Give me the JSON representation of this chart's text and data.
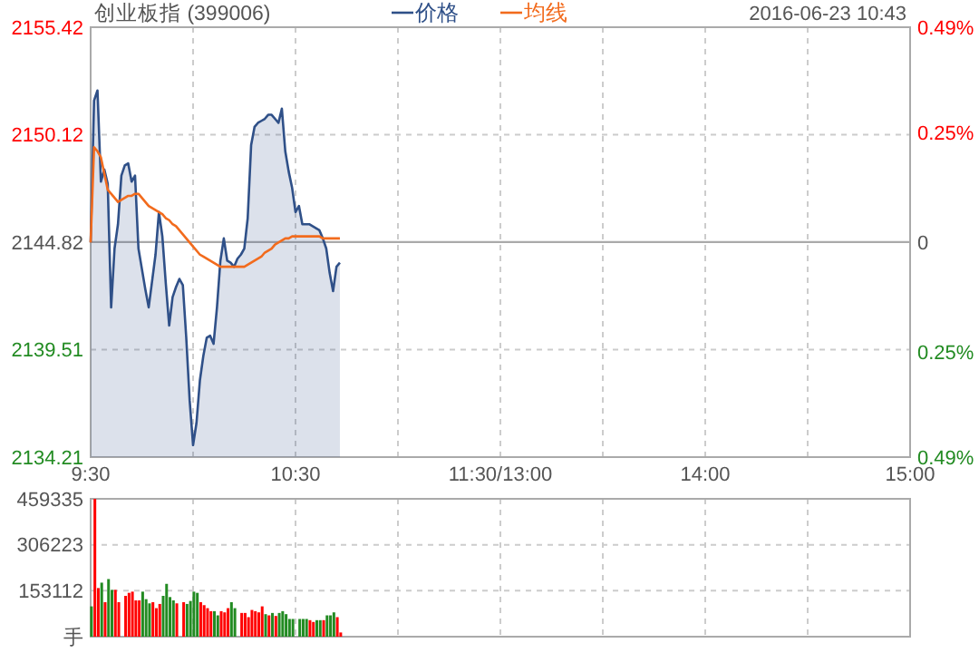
{
  "chart_data": [
    {
      "type": "area",
      "title": "创业板指 (399006)",
      "subtitle": "2016-06-23 10:43",
      "legend": "top",
      "grid": true,
      "categories": [
        "9:30",
        null,
        null,
        null,
        null,
        null,
        null,
        null,
        null,
        null,
        null,
        null,
        null,
        null,
        null,
        null,
        null,
        null,
        null,
        null,
        null,
        null,
        null,
        null,
        null,
        null,
        null,
        null,
        null,
        null,
        null,
        null,
        null,
        null,
        null,
        null,
        null,
        null,
        null,
        null,
        null,
        null,
        null,
        null,
        null,
        null,
        null,
        null,
        null,
        null,
        null,
        null,
        null,
        null,
        null,
        null,
        null,
        null,
        null,
        null,
        "10:30",
        null,
        null,
        null,
        null,
        null,
        null,
        null,
        null,
        null,
        null,
        null,
        null,
        null,
        null,
        null,
        null,
        null,
        null,
        null,
        null,
        null,
        null,
        null,
        null,
        null,
        null,
        null,
        null,
        null,
        null,
        null,
        null,
        null,
        null,
        null,
        null,
        null,
        null,
        null,
        null,
        null,
        null,
        null,
        null,
        null,
        null,
        null,
        null,
        null,
        null,
        null,
        null,
        null,
        null,
        null,
        null,
        null,
        null,
        null,
        "11:30/13:00",
        null,
        null,
        null,
        null,
        null,
        null,
        null,
        null,
        null,
        null,
        null,
        null,
        null,
        null,
        null,
        null,
        null,
        null,
        null,
        null,
        null,
        null,
        null,
        null,
        null,
        null,
        null,
        null,
        null,
        null,
        null,
        null,
        null,
        null,
        null,
        null,
        null,
        null,
        null,
        null,
        null,
        null,
        null,
        null,
        null,
        null,
        null,
        null,
        null,
        null,
        null,
        null,
        null,
        null,
        null,
        null,
        null,
        null,
        null,
        "14:00",
        null,
        null,
        null,
        null,
        null,
        null,
        null,
        null,
        null,
        null,
        null,
        null,
        null,
        null,
        null,
        null,
        null,
        null,
        null,
        null,
        null,
        null,
        null,
        null,
        null,
        null,
        null,
        null,
        null,
        null,
        null,
        null,
        null,
        null,
        null,
        null,
        null,
        null,
        null,
        null,
        null,
        null,
        null,
        null,
        null,
        null,
        null,
        null,
        null,
        null,
        null,
        null,
        null,
        null,
        null,
        null,
        null,
        null,
        null,
        "15:00"
      ],
      "ylim": [
        2134.21,
        2155.42
      ],
      "yticks": [
        2134.21,
        2139.51,
        2144.82,
        2150.12,
        2155.42
      ],
      "y2lim": [
        -0.49,
        0.49
      ],
      "y2ticks": [
        {
          "value": -0.49,
          "label": "0.49%"
        },
        {
          "value": -0.25,
          "label": "0.25%"
        },
        0,
        {
          "value": 0.25,
          "label": "0.25%"
        },
        {
          "value": 0.49,
          "label": "0.49%"
        }
      ],
      "ref_lines": [
        {
          "axis": "y",
          "value": 2144.82,
          "color": "#aaaaaa"
        }
      ],
      "series": [
        {
          "name": "价格",
          "type": "area",
          "color": "#2f5088",
          "values": [
            2144.8,
            2151.8,
            2152.3,
            2147.8,
            2148.4,
            2147.7,
            2141.6,
            2144.5,
            2145.7,
            2148.1,
            2148.6,
            2148.7,
            2147.8,
            2148.1,
            2144.5,
            2143.5,
            2142.5,
            2141.6,
            2142.9,
            2144.2,
            2146.3,
            2145.1,
            2142.8,
            2140.7,
            2142.1,
            2142.6,
            2143.0,
            2142.7,
            2140.1,
            2137.0,
            2134.8,
            2135.9,
            2138.0,
            2139.2,
            2140.1,
            2140.2,
            2139.8,
            2141.6,
            2143.9,
            2145.0,
            2143.9,
            2143.8,
            2143.6,
            2144.0,
            2144.2,
            2144.5,
            2146.0,
            2149.6,
            2150.5,
            2150.7,
            2150.8,
            2150.9,
            2151.1,
            2151.1,
            2150.9,
            2150.7,
            2151.4,
            2149.3,
            2148.3,
            2147.5,
            2146.3,
            2146.6,
            2145.7,
            2145.7,
            2145.7,
            2145.6,
            2145.5,
            2145.4,
            2145.0,
            2144.5,
            2143.3,
            2142.4,
            2143.6,
            2143.8,
            null,
            null,
            null,
            null,
            null,
            null,
            null,
            null,
            null,
            null,
            null,
            null,
            null,
            null,
            null,
            null,
            null,
            null,
            null,
            null,
            null,
            null,
            null,
            null,
            null,
            null,
            null,
            null,
            null,
            null,
            null,
            null,
            null,
            null,
            null,
            null,
            null,
            null,
            null,
            null,
            null,
            null,
            null,
            null,
            null,
            null,
            null,
            null,
            null,
            null,
            null,
            null,
            null,
            null,
            null,
            null,
            null,
            null,
            null,
            null,
            null,
            null,
            null,
            null,
            null,
            null,
            null,
            null,
            null,
            null,
            null,
            null,
            null,
            null,
            null,
            null,
            null,
            null,
            null,
            null,
            null,
            null,
            null,
            null,
            null,
            null,
            null,
            null,
            null,
            null,
            null,
            null,
            null,
            null,
            null,
            null,
            null,
            null,
            null,
            null,
            null,
            null,
            null,
            null,
            null,
            null,
            null,
            null,
            null,
            null,
            null,
            null,
            null,
            null,
            null,
            null,
            null,
            null,
            null,
            null,
            null,
            null,
            null,
            null,
            null,
            null,
            null,
            null,
            null,
            null,
            null,
            null,
            null,
            null,
            null,
            null,
            null,
            null,
            null,
            null,
            null,
            null,
            null,
            null,
            null,
            null,
            null,
            null,
            null,
            null,
            null,
            null,
            null,
            null,
            null,
            null,
            null,
            null,
            null,
            null,
            null,
            null,
            null,
            null,
            null,
            null,
            null
          ]
        },
        {
          "name": "均线",
          "type": "line",
          "color": "#f26b1d",
          "values": [
            2144.8,
            2149.5,
            2149.3,
            2149.0,
            2148.2,
            2147.4,
            2147.2,
            2147.0,
            2146.8,
            2146.9,
            2147.0,
            2147.1,
            2147.1,
            2147.2,
            2147.2,
            2147.0,
            2146.8,
            2146.6,
            2146.5,
            2146.4,
            2146.3,
            2146.2,
            2146.0,
            2145.9,
            2145.7,
            2145.6,
            2145.4,
            2145.2,
            2145.0,
            2144.8,
            2144.6,
            2144.4,
            2144.2,
            2144.1,
            2144.0,
            2143.9,
            2143.8,
            2143.7,
            2143.6,
            2143.6,
            2143.6,
            2143.6,
            2143.6,
            2143.6,
            2143.6,
            2143.6,
            2143.7,
            2143.8,
            2143.9,
            2144.0,
            2144.1,
            2144.3,
            2144.4,
            2144.5,
            2144.7,
            2144.8,
            2144.9,
            2145.0,
            2145.0,
            2145.1,
            2145.1,
            2145.1,
            2145.1,
            2145.1,
            2145.1,
            2145.1,
            2145.1,
            2145.1,
            2145.0,
            2145.0,
            2145.0,
            2145.0,
            2145.0,
            2145.0,
            null,
            null,
            null,
            null,
            null,
            null,
            null,
            null,
            null,
            null,
            null,
            null,
            null,
            null,
            null,
            null,
            null,
            null,
            null,
            null,
            null,
            null,
            null,
            null,
            null,
            null,
            null,
            null,
            null,
            null,
            null,
            null,
            null,
            null,
            null,
            null,
            null,
            null,
            null,
            null,
            null,
            null,
            null,
            null,
            null,
            null,
            null,
            null,
            null,
            null,
            null,
            null,
            null,
            null,
            null,
            null,
            null,
            null,
            null,
            null,
            null,
            null,
            null,
            null,
            null,
            null,
            null,
            null,
            null,
            null,
            null,
            null,
            null,
            null,
            null,
            null,
            null,
            null,
            null,
            null,
            null,
            null,
            null,
            null,
            null,
            null,
            null,
            null,
            null,
            null,
            null,
            null,
            null,
            null,
            null,
            null,
            null,
            null,
            null,
            null,
            null,
            null,
            null,
            null,
            null,
            null,
            null,
            null,
            null,
            null,
            null,
            null,
            null,
            null,
            null,
            null,
            null,
            null,
            null,
            null,
            null,
            null,
            null,
            null,
            null,
            null,
            null,
            null,
            null,
            null,
            null,
            null,
            null,
            null,
            null,
            null,
            null,
            null,
            null,
            null,
            null,
            null,
            null,
            null,
            null,
            null,
            null,
            null,
            null,
            null,
            null,
            null,
            null,
            null,
            null,
            null,
            null,
            null,
            null,
            null,
            null,
            null,
            null,
            null,
            null,
            null,
            null
          ]
        }
      ]
    },
    {
      "type": "bar",
      "grid": true,
      "tick_labels": "y",
      "categories": [
        null,
        null,
        null,
        null,
        null,
        null,
        null,
        null,
        null,
        null,
        null,
        null,
        null,
        null,
        null,
        null,
        null,
        null,
        null,
        null,
        null,
        null,
        null,
        null,
        null,
        null,
        null,
        null,
        null,
        null,
        null,
        null,
        null,
        null,
        null,
        null,
        null,
        null,
        null,
        null,
        null,
        null,
        null,
        null,
        null,
        null,
        null,
        null,
        null,
        null,
        null,
        null,
        null,
        null,
        null,
        null,
        null,
        null,
        null,
        null,
        null,
        null,
        null,
        null,
        null,
        null,
        null,
        null,
        null,
        null,
        null,
        null,
        null,
        null,
        null,
        null,
        null,
        null,
        null,
        null,
        null,
        null,
        null,
        null,
        null,
        null,
        null,
        null,
        null,
        null,
        null,
        null,
        null,
        null,
        null,
        null,
        null,
        null,
        null,
        null,
        null,
        null,
        null,
        null,
        null,
        null,
        null,
        null,
        null,
        null,
        null,
        null,
        null,
        null,
        null,
        null,
        null,
        null,
        null,
        null,
        null,
        null,
        null,
        null,
        null,
        null,
        null,
        null,
        null,
        null,
        null,
        null,
        null,
        null,
        null,
        null,
        null,
        null,
        null,
        null,
        null,
        null,
        null,
        null,
        null,
        null,
        null,
        null,
        null,
        null,
        null,
        null,
        null,
        null,
        null,
        null,
        null,
        null,
        null,
        null,
        null,
        null,
        null,
        null,
        null,
        null,
        null,
        null,
        null,
        null,
        null,
        null,
        null,
        null,
        null,
        null,
        null,
        null,
        null,
        null,
        null,
        null,
        null,
        null,
        null,
        null,
        null,
        null,
        null,
        null,
        null,
        null,
        null,
        null,
        null,
        null,
        null,
        null,
        null,
        null,
        null,
        null,
        null,
        null,
        null,
        null,
        null,
        null,
        null,
        null,
        null,
        null,
        null,
        null,
        null,
        null,
        null,
        null,
        null,
        null,
        null,
        null,
        null,
        null,
        null,
        null,
        null,
        null,
        null,
        null,
        null,
        null,
        null,
        null,
        null,
        null,
        null,
        null,
        null,
        null,
        null
      ],
      "ylim": [
        0,
        459335
      ],
      "yticks": [
        {
          "value": 0,
          "label": "手"
        },
        153112,
        306223,
        459335
      ],
      "values": [
        101000,
        459000,
        162000,
        180000,
        115000,
        192000,
        156000,
        156000,
        115000,
        null,
        136000,
        146000,
        150000,
        121000,
        121000,
        150000,
        125000,
        111000,
        115000,
        95000,
        109000,
        136000,
        176000,
        132000,
        121000,
        111000,
        null,
        115000,
        109000,
        119000,
        150000,
        146000,
        115000,
        105000,
        95000,
        85000,
        85000,
        71000,
        85000,
        81000,
        95000,
        115000,
        95000,
        null,
        79000,
        79000,
        65000,
        89000,
        85000,
        81000,
        101000,
        75000,
        71000,
        79000,
        69000,
        79000,
        85000,
        75000,
        59000,
        59000,
        null,
        59000,
        59000,
        59000,
        55000,
        49000,
        55000,
        55000,
        55000,
        71000,
        71000,
        81000,
        65000,
        14000,
        null,
        null,
        null,
        null,
        null,
        null,
        null,
        null,
        null,
        null,
        null,
        null,
        null,
        null,
        null,
        null,
        null,
        null,
        null,
        null,
        null,
        null,
        null,
        null,
        null,
        null,
        null,
        null,
        null,
        null,
        null,
        null,
        null,
        null,
        null,
        null,
        null,
        null,
        null,
        null,
        null,
        null,
        null,
        null,
        null,
        null,
        null,
        null,
        null,
        null,
        null,
        null,
        null,
        null,
        null,
        null,
        null,
        null,
        null,
        null,
        null,
        null,
        null,
        null,
        null,
        null,
        null,
        null,
        null,
        null,
        null,
        null,
        null,
        null,
        null,
        null,
        null,
        null,
        null,
        null,
        null,
        null,
        null,
        null,
        null,
        null,
        null,
        null,
        null,
        null,
        null,
        null,
        null,
        null,
        null,
        null,
        null,
        null,
        null,
        null,
        null,
        null,
        null,
        null,
        null,
        null,
        null,
        null,
        null,
        null,
        null,
        null,
        null,
        null,
        null,
        null,
        null,
        null,
        null,
        null,
        null,
        null,
        null,
        null,
        null,
        null,
        null,
        null,
        null,
        null,
        null,
        null,
        null,
        null,
        null,
        null,
        null,
        null,
        null,
        null,
        null,
        null,
        null,
        null,
        null,
        null,
        null,
        null,
        null,
        null,
        null,
        null,
        null,
        null,
        null,
        null,
        null,
        null,
        null,
        null,
        null,
        null,
        null,
        null,
        null,
        null,
        null
      ],
      "colors": [
        "#228b22",
        "#ff0000",
        "#ff0000",
        "#228b22",
        "#ff0000",
        "#228b22",
        "#228b22",
        "#ff0000",
        "#ff0000",
        null,
        "#ff0000",
        "#ff0000",
        "#ff0000",
        "#ff0000",
        "#ff0000",
        "#228b22",
        "#228b22",
        "#228b22",
        "#ff0000",
        "#ff0000",
        "#ff0000",
        "#228b22",
        "#228b22",
        "#228b22",
        "#228b22",
        "#ff0000",
        null,
        "#ff0000",
        "#228b22",
        "#228b22",
        "#228b22",
        "#228b22",
        "#ff0000",
        "#ff0000",
        "#ff0000",
        "#ff0000",
        "#228b22",
        "#228b22",
        "#ff0000",
        "#ff0000",
        "#ff0000",
        "#228b22",
        "#228b22",
        null,
        "#ff0000",
        "#ff0000",
        "#ff0000",
        "#ff0000",
        "#ff0000",
        "#ff0000",
        "#ff0000",
        "#228b22",
        "#ff0000",
        "#228b22",
        "#ff0000",
        "#228b22",
        "#228b22",
        "#228b22",
        "#228b22",
        "#228b22",
        null,
        "#228b22",
        "#228b22",
        "#228b22",
        "#ff0000",
        "#ff0000",
        "#228b22",
        "#228b22",
        "#ff0000",
        "#228b22",
        "#228b22",
        "#228b22",
        "#ff0000",
        "#ff0000",
        null,
        null,
        null,
        null,
        null,
        null,
        null,
        null,
        null,
        null,
        null,
        null,
        null,
        null,
        null,
        null,
        null,
        null,
        null,
        null,
        null,
        null,
        null,
        null,
        null,
        null,
        null,
        null,
        null,
        null,
        null,
        null,
        null,
        null,
        null,
        null,
        null,
        null,
        null,
        null,
        null,
        null,
        null,
        null,
        null,
        null,
        null,
        null,
        null,
        null,
        null,
        null,
        null,
        null,
        null,
        null,
        null,
        null,
        null,
        null,
        null,
        null,
        null,
        null,
        null,
        null,
        null,
        null,
        null,
        null,
        null,
        null,
        null,
        null,
        null,
        null,
        null,
        null,
        null,
        null,
        null,
        null,
        null,
        null,
        null,
        null,
        null,
        null,
        null,
        null,
        null,
        null,
        null,
        null,
        null,
        null,
        null,
        null,
        null,
        null,
        null,
        null,
        null,
        null,
        null,
        null,
        null,
        null,
        null,
        null,
        null,
        null,
        null,
        null,
        null,
        null,
        null,
        null,
        null,
        null,
        null,
        null,
        null,
        null,
        null,
        null,
        null,
        null,
        null,
        null,
        null,
        null,
        null,
        null,
        null,
        null,
        null,
        null,
        null,
        null,
        null,
        null,
        null,
        null,
        null,
        null,
        null,
        null,
        null,
        null,
        null,
        null,
        null,
        null,
        null,
        null,
        null,
        null,
        null,
        null,
        null,
        null,
        null,
        null,
        null,
        null,
        null
      ]
    }
  ]
}
